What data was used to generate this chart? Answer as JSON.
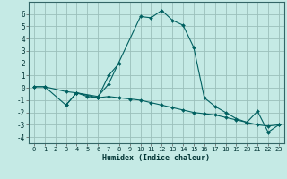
{
  "background_color": "#c5eae5",
  "grid_color": "#9bbfba",
  "line_color": "#006060",
  "xlabel": "Humidex (Indice chaleur)",
  "xlim": [
    -0.5,
    23.5
  ],
  "ylim": [
    -4.5,
    7.0
  ],
  "yticks": [
    -4,
    -3,
    -2,
    -1,
    0,
    1,
    2,
    3,
    4,
    5,
    6
  ],
  "xticks": [
    0,
    1,
    2,
    3,
    4,
    5,
    6,
    7,
    8,
    9,
    10,
    11,
    12,
    13,
    14,
    15,
    16,
    17,
    18,
    19,
    20,
    21,
    22,
    23
  ],
  "series": [
    {
      "x": [
        0,
        1,
        3,
        4,
        5,
        6,
        7,
        8,
        9,
        10,
        11,
        12,
        13,
        14,
        15,
        16,
        17,
        18,
        19,
        20,
        21,
        22,
        23
      ],
      "y": [
        0.1,
        0.1,
        -1.4,
        -0.4,
        -0.7,
        -0.8,
        -0.7,
        -0.8,
        -0.9,
        -1.0,
        -1.2,
        -1.4,
        -1.6,
        -1.8,
        -2.0,
        -2.1,
        -2.2,
        -2.4,
        -2.6,
        -2.8,
        -3.0,
        -3.1,
        -3.0
      ]
    },
    {
      "x": [
        0,
        1,
        3,
        4,
        6,
        7,
        10,
        11,
        12,
        13,
        14,
        15,
        16,
        17,
        18,
        19,
        20,
        21,
        22,
        23
      ],
      "y": [
        0.1,
        0.1,
        -0.3,
        -0.4,
        -0.7,
        0.3,
        5.8,
        5.7,
        6.3,
        5.5,
        5.1,
        3.3,
        -0.8,
        -1.5,
        -2.0,
        -2.5,
        -2.8,
        -1.9,
        -3.6,
        -3.0
      ]
    },
    {
      "x": [
        3,
        4,
        6,
        7,
        8
      ],
      "y": [
        -1.4,
        -0.4,
        -0.8,
        1.0,
        2.0
      ]
    }
  ]
}
